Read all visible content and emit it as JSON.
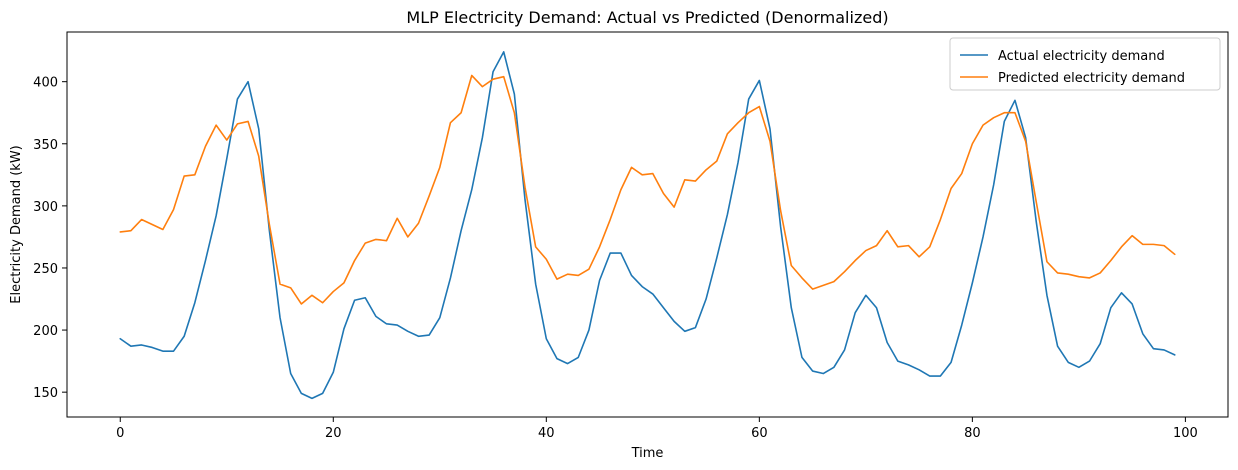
{
  "chart_data": {
    "type": "line",
    "title": "MLP Electricity Demand: Actual vs Predicted (Denormalized)",
    "xlabel": "Time",
    "ylabel": "Electricity Demand (kW)",
    "xlim": [
      -5,
      104
    ],
    "ylim": [
      130,
      440
    ],
    "xticks": [
      0,
      20,
      40,
      60,
      80,
      100
    ],
    "yticks": [
      150,
      200,
      250,
      300,
      350,
      400
    ],
    "grid": false,
    "legend_position": "upper right",
    "series": [
      {
        "name": "Actual electricity demand",
        "color": "#1f77b4",
        "values": [
          193,
          187,
          188,
          186,
          183,
          183,
          195,
          222,
          256,
          292,
          338,
          386,
          400,
          362,
          280,
          210,
          165,
          149,
          145,
          149,
          166,
          201,
          224,
          226,
          211,
          205,
          204,
          199,
          195,
          196,
          210,
          242,
          280,
          313,
          355,
          408,
          424,
          390,
          305,
          237,
          193,
          177,
          173,
          178,
          200,
          240,
          262,
          262,
          244,
          235,
          229,
          218,
          207,
          199,
          202,
          225,
          258,
          293,
          335,
          386,
          401,
          362,
          283,
          218,
          178,
          167,
          165,
          170,
          184,
          214,
          228,
          218,
          190,
          175,
          172,
          168,
          163,
          163,
          174,
          204,
          238,
          275,
          317,
          368,
          385,
          355,
          287,
          228,
          187,
          174,
          170,
          175,
          189,
          218,
          230,
          221,
          197,
          185,
          184,
          180
        ]
      },
      {
        "name": "Predicted electricity demand",
        "color": "#ff7f0e",
        "values": [
          279,
          280,
          289,
          285,
          281,
          297,
          324,
          325,
          348,
          365,
          353,
          366,
          368,
          340,
          285,
          237,
          234,
          221,
          228,
          222,
          231,
          238,
          256,
          270,
          273,
          272,
          290,
          275,
          286,
          308,
          331,
          367,
          375,
          405,
          396,
          402,
          404,
          375,
          315,
          267,
          257,
          241,
          245,
          244,
          249,
          267,
          289,
          313,
          331,
          325,
          326,
          310,
          299,
          321,
          320,
          329,
          336,
          358,
          367,
          375,
          380,
          352,
          296,
          252,
          242,
          233,
          236,
          239,
          247,
          256,
          264,
          268,
          280,
          267,
          268,
          259,
          267,
          289,
          314,
          326,
          350,
          365,
          371,
          375,
          375,
          352,
          303,
          255,
          246,
          245,
          243,
          242,
          246,
          256,
          267,
          276,
          269,
          269,
          268,
          261
        ]
      }
    ]
  }
}
